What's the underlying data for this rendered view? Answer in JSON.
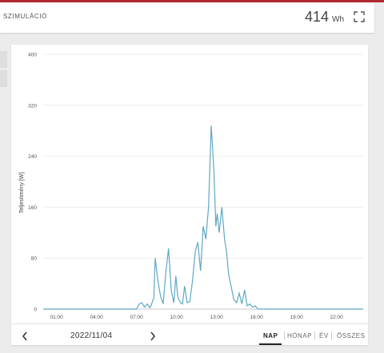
{
  "header": {
    "title": "SZIMULÁCIÓ",
    "energy_value": "414",
    "energy_unit": "Wh"
  },
  "colors": {
    "accent": "#b0282f",
    "line": "#5fa8c4"
  },
  "chart_data": {
    "type": "line",
    "ylabel": "Teljesítmény [W]",
    "ylim": [
      0,
      400
    ],
    "yticks": [
      "0",
      "80",
      "160",
      "240",
      "320",
      "400"
    ],
    "xticks": [
      "01:00",
      "04:00",
      "07:00",
      "10:00",
      "13:00",
      "16:00",
      "19:00",
      "22:00"
    ],
    "x_range_hours": [
      0,
      24
    ],
    "series": [
      {
        "x": [
          0,
          7.0,
          7.2,
          7.4,
          7.6,
          7.8,
          8.0,
          8.1,
          8.3,
          8.4,
          8.6,
          8.8,
          9.0,
          9.2,
          9.4,
          9.6,
          9.8,
          9.95,
          10.1,
          10.3,
          10.45,
          10.6,
          10.8,
          11.0,
          11.2,
          11.4,
          11.6,
          11.8,
          12.0,
          12.2,
          12.4,
          12.6,
          12.8,
          12.95,
          13.05,
          13.2,
          13.4,
          13.6,
          13.75,
          13.9,
          14.1,
          14.3,
          14.5,
          14.7,
          14.9,
          15.1,
          15.3,
          15.5,
          15.7,
          15.9,
          16.1,
          16.3,
          24
        ],
        "y": [
          0,
          0,
          8,
          10,
          3,
          8,
          2,
          6,
          18,
          80,
          45,
          20,
          8,
          58,
          95,
          30,
          10,
          52,
          18,
          10,
          8,
          36,
          10,
          12,
          45,
          90,
          105,
          60,
          130,
          110,
          160,
          288,
          220,
          130,
          150,
          120,
          160,
          110,
          90,
          55,
          35,
          15,
          10,
          25,
          8,
          30,
          5,
          8,
          3,
          5,
          0,
          0,
          0
        ]
      }
    ]
  },
  "footer": {
    "prev_label": "‹",
    "next_label": "›",
    "date": "2022/11/04",
    "periods": [
      "NAP",
      "HÓNAP",
      "ÉV",
      "ÖSSZES"
    ]
  }
}
